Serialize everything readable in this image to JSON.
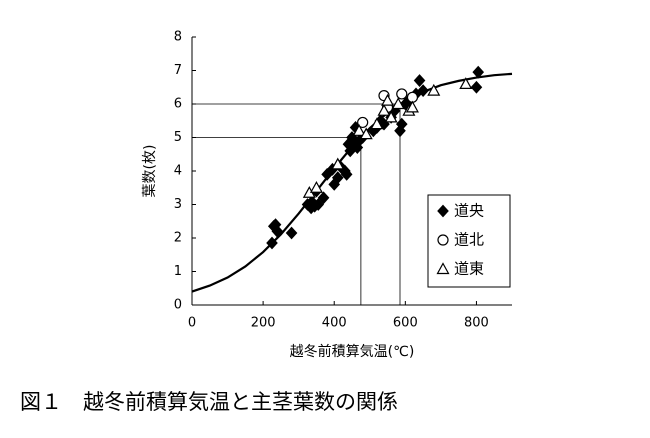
{
  "chart_data": {
    "type": "scatter",
    "title": "図１　越冬前積算気温と主茎葉数の関係",
    "x_label": "越冬前積算気温(℃)",
    "y_label": "葉数(枚)",
    "xlim": [
      0,
      900
    ],
    "ylim": [
      0,
      8
    ],
    "xticks": [
      0,
      200,
      400,
      600,
      800
    ],
    "yticks": [
      0,
      1,
      2,
      3,
      4,
      5,
      6,
      7,
      8
    ],
    "legend": "right",
    "series": [
      {
        "name": "道央",
        "color": "#000000",
        "marker": "diamond",
        "filled": true,
        "x": [
          225,
          230,
          235,
          240,
          280,
          325,
          335,
          340,
          345,
          350,
          355,
          370,
          380,
          395,
          400,
          410,
          420,
          430,
          435,
          440,
          445,
          450,
          455,
          460,
          465,
          470,
          480,
          510,
          520,
          530,
          540,
          560,
          570,
          585,
          590,
          600,
          610,
          630,
          640,
          650,
          800,
          805
        ],
        "values": [
          1.85,
          2.35,
          2.4,
          2.2,
          2.15,
          3.0,
          2.9,
          3.05,
          2.95,
          3.4,
          3.0,
          3.2,
          3.9,
          4.05,
          3.6,
          3.8,
          4.1,
          4.0,
          3.9,
          4.8,
          4.6,
          5.0,
          4.75,
          5.3,
          4.7,
          4.9,
          5.0,
          5.2,
          5.3,
          5.5,
          5.4,
          5.6,
          5.8,
          5.2,
          5.4,
          6.0,
          6.1,
          6.3,
          6.7,
          6.4,
          6.5,
          6.95
        ]
      },
      {
        "name": "道北",
        "color": "#000000",
        "marker": "circle",
        "filled": false,
        "x": [
          480,
          540,
          550,
          590,
          620
        ],
        "values": [
          5.45,
          6.25,
          5.9,
          6.3,
          6.2
        ]
      },
      {
        "name": "道東",
        "color": "#000000",
        "marker": "triangle",
        "filled": false,
        "x": [
          330,
          350,
          410,
          470,
          490,
          520,
          540,
          550,
          560,
          580,
          610,
          620,
          680,
          770
        ],
        "values": [
          3.35,
          3.5,
          4.2,
          5.2,
          5.1,
          5.4,
          5.8,
          6.1,
          5.6,
          6.0,
          5.8,
          5.9,
          6.4,
          6.6
        ]
      }
    ],
    "fit_curve": {
      "x": [
        0,
        50,
        100,
        150,
        200,
        250,
        300,
        350,
        400,
        450,
        500,
        550,
        600,
        650,
        700,
        750,
        800,
        850,
        900
      ],
      "values": [
        0.4,
        0.58,
        0.82,
        1.15,
        1.58,
        2.11,
        2.73,
        3.4,
        4.08,
        4.72,
        5.28,
        5.74,
        6.09,
        6.36,
        6.56,
        6.69,
        6.79,
        6.86,
        6.9
      ]
    },
    "reference_lines": [
      {
        "x": 475,
        "y": 5
      },
      {
        "x": 585,
        "y": 6
      }
    ]
  }
}
